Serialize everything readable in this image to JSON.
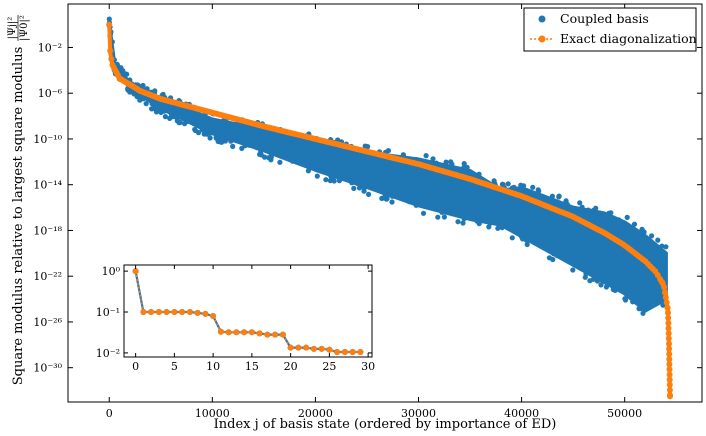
{
  "chart_data": [
    {
      "type": "scatter",
      "title": "",
      "xlabel": "Index j of basis state (ordered by importance of ED)",
      "ylabel": "Square modulus relative to largest square modulus |Ψj|²/|Ψ0|²",
      "ylabel_text": "Square modulus relative to largest square modulus",
      "ylabel_fraction": {
        "numerator": "|Ψj|²",
        "denominator": "|Ψ0|²"
      },
      "xlim": [
        -4000,
        57500
      ],
      "ylim_log10": [
        -33,
        1.8
      ],
      "x_ticks": [
        0,
        10000,
        20000,
        30000,
        40000,
        50000
      ],
      "x_tick_labels": [
        "0",
        "10000",
        "20000",
        "30000",
        "40000",
        "50000"
      ],
      "y_ticks_log10": [
        -2,
        -6,
        -10,
        -14,
        -18,
        -22,
        -26,
        -30
      ],
      "y_tick_labels": [
        "10⁻²",
        "10⁻⁶",
        "10⁻¹⁰",
        "10⁻¹⁴",
        "10⁻¹⁸",
        "10⁻²²",
        "10⁻²⁶",
        "10⁻³⁰"
      ],
      "legend_position": "top-right",
      "series": [
        {
          "name": "Coupled basis",
          "style": "scatter",
          "color": "#1f77b4",
          "x": [
            0,
            500,
            2000,
            5000,
            10000,
            15000,
            20000,
            25000,
            30000,
            35000,
            38000,
            40000,
            43000,
            45000,
            48000,
            50000,
            52000,
            54000
          ],
          "log10_upper": [
            0,
            -3.5,
            -5.2,
            -6.5,
            -8.3,
            -9.2,
            -10.2,
            -11.2,
            -11.8,
            -12.8,
            -14.5,
            -14.3,
            -15.3,
            -16,
            -16.5,
            -17.3,
            -18.5,
            -20
          ],
          "log10_lower": [
            0,
            -3.8,
            -5.5,
            -7.3,
            -9.5,
            -11,
            -12.7,
            -14.2,
            -15.8,
            -17,
            -17.5,
            -18.5,
            -20,
            -21,
            -22.5,
            -23.5,
            -25,
            -24
          ]
        },
        {
          "name": "Exact diagonalization",
          "style": "line+markers",
          "color": "#ff7f0e",
          "x": [
            0,
            100,
            300,
            1000,
            3000,
            5000,
            10000,
            15000,
            20000,
            25000,
            30000,
            35000,
            40000,
            45000,
            48000,
            50000,
            52000,
            53000,
            53800,
            54200,
            54300,
            54400
          ],
          "log10": [
            0,
            -2.5,
            -3.5,
            -4.7,
            -5.8,
            -6.5,
            -7.7,
            -8.9,
            -10,
            -11.1,
            -12.2,
            -13.5,
            -15,
            -16.8,
            -18.2,
            -19.3,
            -20.7,
            -21.6,
            -22.8,
            -25,
            -28,
            -32.5
          ]
        }
      ]
    },
    {
      "type": "line",
      "title": "inset",
      "xlabel": "",
      "ylabel": "",
      "xlim": [
        -1.5,
        30.5
      ],
      "ylim_log10": [
        -2.1,
        0.15
      ],
      "x_ticks": [
        0,
        5,
        10,
        15,
        20,
        25,
        30
      ],
      "x_tick_labels": [
        "0",
        "5",
        "10",
        "15",
        "20",
        "25",
        "30"
      ],
      "y_ticks_log10": [
        0,
        -1,
        -2
      ],
      "y_tick_labels": [
        "10⁰",
        "10⁻¹",
        "10⁻²"
      ],
      "series": [
        {
          "name": "Coupled basis",
          "color": "#1f77b4",
          "x": [
            0,
            1,
            2,
            3,
            4,
            5,
            6,
            7,
            8,
            9,
            10,
            11,
            12,
            13,
            14,
            15,
            16,
            17,
            18,
            19,
            20,
            21,
            22,
            23,
            24,
            25,
            26,
            27,
            28,
            29
          ],
          "values": [
            1,
            0.1,
            0.1,
            0.1,
            0.1,
            0.1,
            0.1,
            0.1,
            0.095,
            0.09,
            0.08,
            0.033,
            0.032,
            0.032,
            0.032,
            0.032,
            0.03,
            0.028,
            0.028,
            0.028,
            0.0135,
            0.0135,
            0.0135,
            0.0125,
            0.0125,
            0.012,
            0.0105,
            0.0105,
            0.0105,
            0.0105
          ]
        },
        {
          "name": "Exact diagonalization",
          "color": "#ff7f0e",
          "x": [
            0,
            1,
            2,
            3,
            4,
            5,
            6,
            7,
            8,
            9,
            10,
            11,
            12,
            13,
            14,
            15,
            16,
            17,
            18,
            19,
            20,
            21,
            22,
            23,
            24,
            25,
            26,
            27,
            28,
            29
          ],
          "values": [
            1,
            0.1,
            0.1,
            0.1,
            0.1,
            0.1,
            0.1,
            0.1,
            0.095,
            0.09,
            0.08,
            0.033,
            0.032,
            0.032,
            0.032,
            0.032,
            0.03,
            0.028,
            0.028,
            0.028,
            0.0135,
            0.0135,
            0.0135,
            0.0125,
            0.0125,
            0.012,
            0.0105,
            0.0105,
            0.0105,
            0.0105
          ]
        }
      ]
    }
  ]
}
